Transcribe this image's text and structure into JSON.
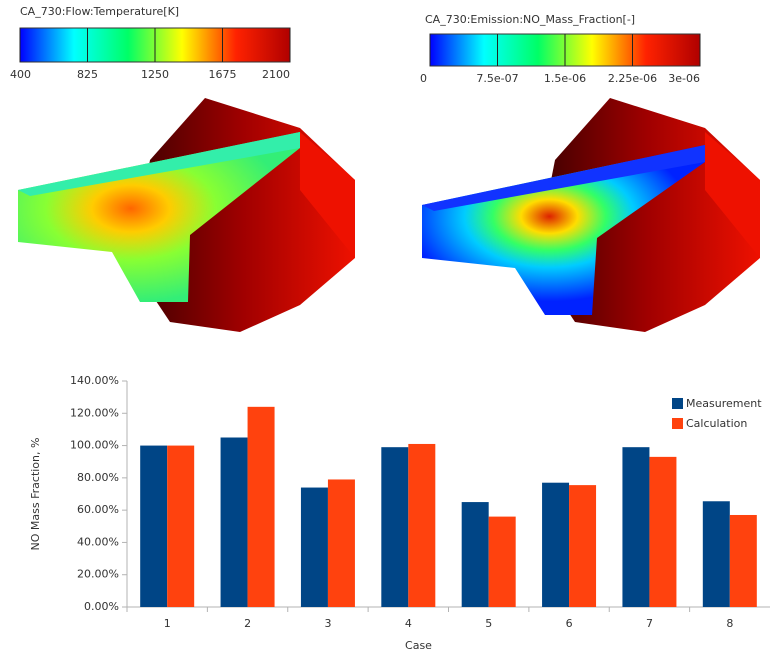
{
  "chart_data": [
    {
      "type": "colorbar",
      "title": "CA_730:Flow:Temperature[K]",
      "xlim": [
        400,
        2100
      ],
      "xticks": [
        400,
        825,
        1250,
        1675,
        2100
      ],
      "colors": [
        "#0000ff",
        "#00ffff",
        "#00ff66",
        "#ffff00",
        "#ff2200",
        "#b00000"
      ]
    },
    {
      "type": "colorbar",
      "title": "CA_730:Emission:NO_Mass_Fraction[-]",
      "xlim": [
        0,
        3e-06
      ],
      "xticks": [
        0,
        {
          "value": 7.5e-07,
          "label": "7.5e-07"
        },
        {
          "value": 1.5e-06,
          "label": "1.5e-06"
        },
        {
          "value": 2.25e-06,
          "label": "2.25e-06"
        },
        {
          "value": 3e-06,
          "label": "3e-06"
        }
      ],
      "colors": [
        "#0000ff",
        "#00ffff",
        "#00ff66",
        "#ffff00",
        "#ff2200",
        "#b00000"
      ]
    },
    {
      "type": "bar",
      "x_label": "Case",
      "y_label": "NO Mass Fraction, %",
      "categories": [
        "1",
        "2",
        "3",
        "4",
        "5",
        "6",
        "7",
        "8"
      ],
      "series": [
        {
          "name": "Measurement",
          "color": "#004586",
          "values": [
            100,
            105,
            74,
            99,
            65,
            77,
            99,
            65.5
          ]
        },
        {
          "name": "Calculation",
          "color": "#ff420e",
          "values": [
            100,
            124,
            79,
            101,
            56,
            75.5,
            93,
            57
          ]
        }
      ],
      "ylim": [
        0,
        140
      ],
      "yticks": [
        {
          "value": 0,
          "label": "0.00%"
        },
        {
          "value": 20,
          "label": "20.00%"
        },
        {
          "value": 40,
          "label": "40.00%"
        },
        {
          "value": 60,
          "label": "60.00%"
        },
        {
          "value": 80,
          "label": "80.00%"
        },
        {
          "value": 100,
          "label": "100.00%"
        },
        {
          "value": 120,
          "label": "120.00%"
        },
        {
          "value": 140,
          "label": "140.00%"
        }
      ],
      "grid": false,
      "legend": "top-right"
    }
  ]
}
